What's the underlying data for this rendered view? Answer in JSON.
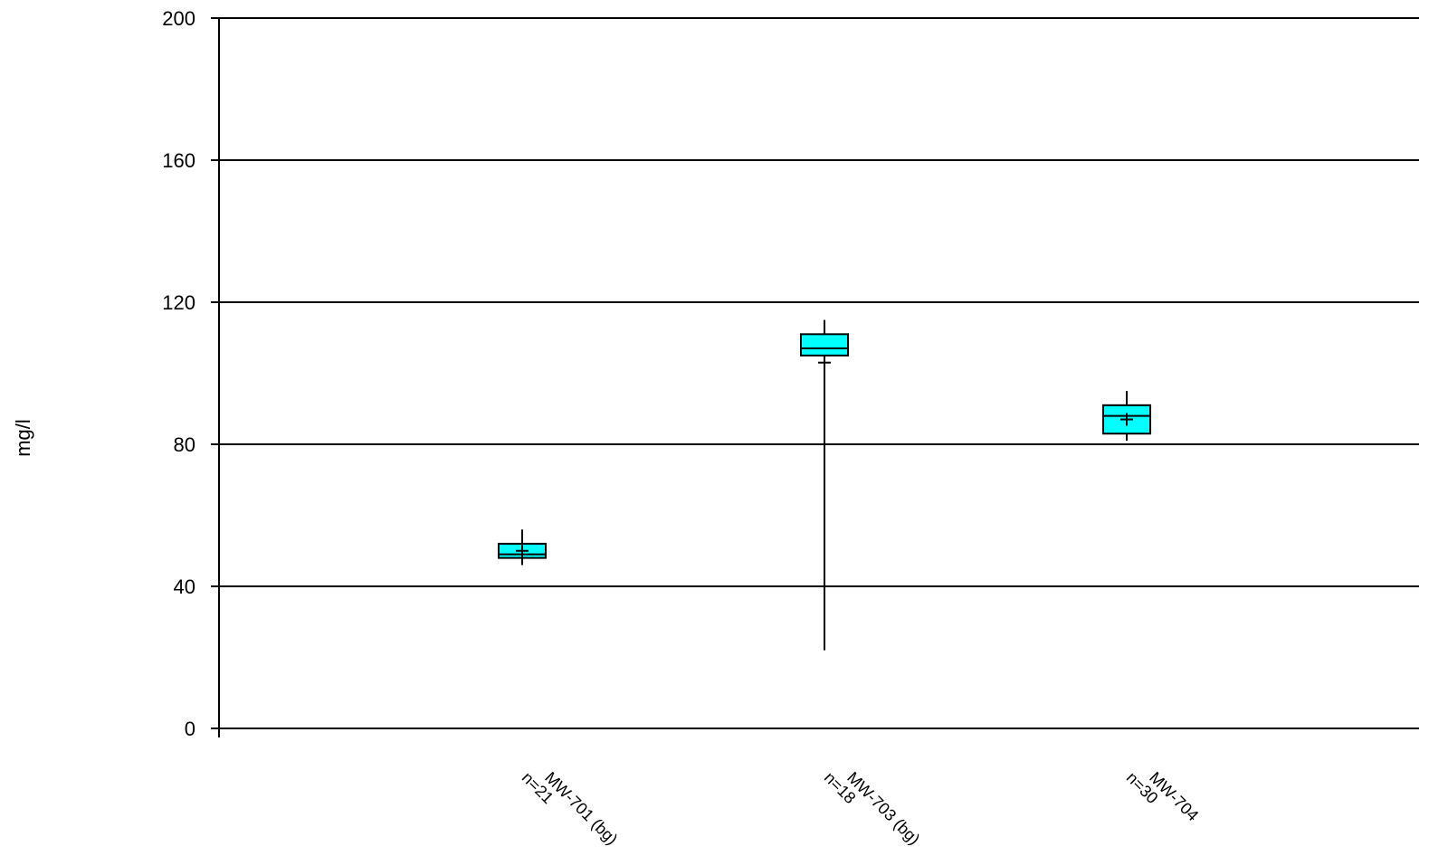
{
  "chart_data": {
    "type": "box",
    "title": "",
    "xlabel": "",
    "ylabel": "mg/l",
    "ylim": [
      0,
      200
    ],
    "yticks": [
      0,
      40,
      80,
      120,
      160,
      200
    ],
    "grid": true,
    "categories": [
      "MW-701 (bg)",
      "MW-703 (bg)",
      "MW-704"
    ],
    "counts": [
      "n=21",
      "n=18",
      "n=30"
    ],
    "boxes": [
      {
        "whisker_low": 46,
        "q1": 48,
        "median": 49,
        "q3": 52,
        "whisker_high": 56,
        "mean": 50
      },
      {
        "whisker_low": 22,
        "q1": 105,
        "median": 107,
        "q3": 111,
        "whisker_high": 115,
        "mean": 103
      },
      {
        "whisker_low": 81,
        "q1": 83,
        "median": 88,
        "q3": 91,
        "whisker_high": 95,
        "mean": 87
      }
    ],
    "box_color": "#00ffff"
  }
}
